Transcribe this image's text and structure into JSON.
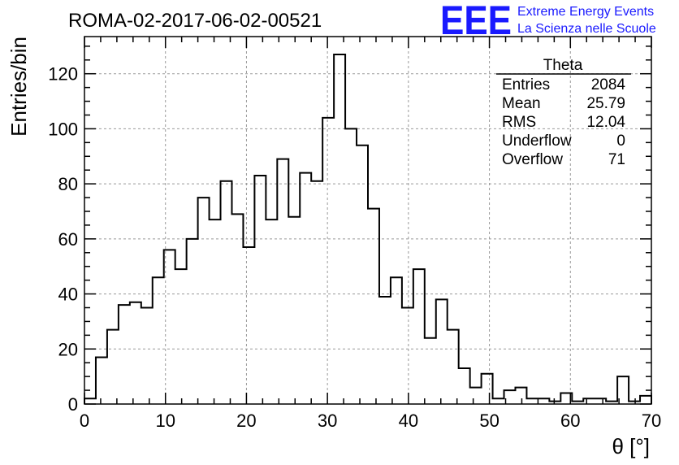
{
  "chart_data": {
    "type": "bar",
    "title": "ROMA-02-2017-06-02-00521",
    "xlabel": "θ [°]",
    "ylabel": "Entries/bin",
    "xlim": [
      0,
      70
    ],
    "ylim": [
      0,
      133.5
    ],
    "bin_width": 1.4,
    "x_ticks": [
      0,
      10,
      20,
      30,
      40,
      50,
      60,
      70
    ],
    "y_ticks": [
      0,
      20,
      40,
      60,
      80,
      100,
      120
    ],
    "grid": true,
    "values": [
      2,
      17,
      27,
      36,
      37,
      35,
      46,
      56,
      49,
      60,
      75,
      67,
      81,
      69,
      57,
      83,
      67,
      89,
      68,
      84,
      81,
      104,
      127,
      100,
      94,
      71,
      39,
      46,
      35,
      49,
      24,
      38,
      27,
      13,
      6,
      11,
      2,
      5,
      6,
      2,
      2,
      1,
      4,
      1,
      2,
      2,
      1,
      10,
      1,
      3
    ],
    "stats_box": {
      "title": "Theta",
      "rows": [
        {
          "label": "Entries",
          "value": "2084"
        },
        {
          "label": "Mean",
          "value": "25.79"
        },
        {
          "label": "RMS",
          "value": "12.04"
        },
        {
          "label": "Underflow",
          "value": "0"
        },
        {
          "label": "Overflow",
          "value": "71"
        }
      ]
    }
  },
  "logo": {
    "mark": "EEE",
    "line1": "Extreme Energy Events",
    "line2": "La Scienza nelle Scuole",
    "color": "#1a1aff"
  }
}
